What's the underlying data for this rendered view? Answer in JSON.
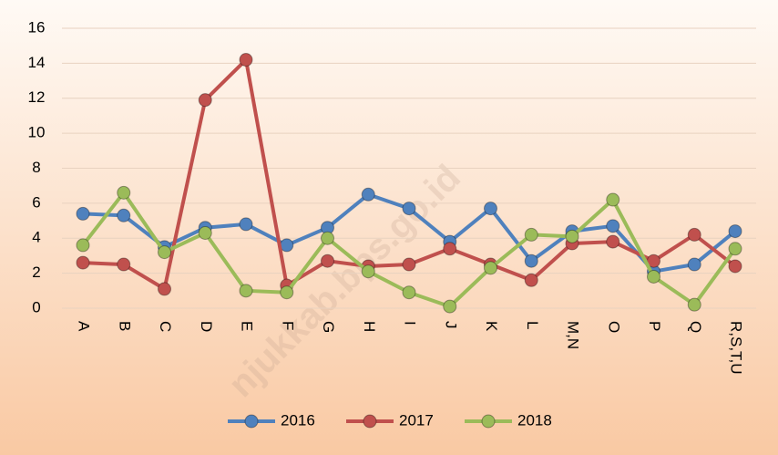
{
  "chart_data": {
    "type": "line",
    "categories": [
      "A",
      "B",
      "C",
      "D",
      "E",
      "F",
      "G",
      "H",
      "I",
      "J",
      "K",
      "L",
      "M,N",
      "O",
      "P",
      "Q",
      "R,S,T,U"
    ],
    "series": [
      {
        "name": "2016",
        "color": "#4f81bd",
        "values": [
          5.4,
          5.3,
          3.5,
          4.6,
          4.8,
          3.6,
          4.6,
          6.5,
          5.7,
          3.8,
          5.7,
          2.7,
          4.4,
          4.7,
          2.1,
          2.5,
          4.4
        ]
      },
      {
        "name": "2017",
        "color": "#c0504d",
        "values": [
          2.6,
          2.5,
          1.1,
          11.9,
          14.2,
          1.3,
          2.7,
          2.4,
          2.5,
          3.4,
          2.5,
          1.6,
          3.7,
          3.8,
          2.7,
          4.2,
          2.4
        ]
      },
      {
        "name": "2018",
        "color": "#9bbb59",
        "values": [
          3.6,
          6.6,
          3.2,
          4.3,
          1.0,
          0.9,
          4.0,
          2.1,
          0.9,
          0.1,
          2.3,
          4.2,
          4.1,
          6.2,
          1.8,
          0.2,
          3.4
        ]
      }
    ],
    "ylim": [
      0,
      16
    ],
    "yticks": [
      0,
      2,
      4,
      6,
      8,
      10,
      12,
      14,
      16
    ],
    "grid": true,
    "legend": "bottom",
    "watermark": "njukkab.bps.go.id"
  }
}
